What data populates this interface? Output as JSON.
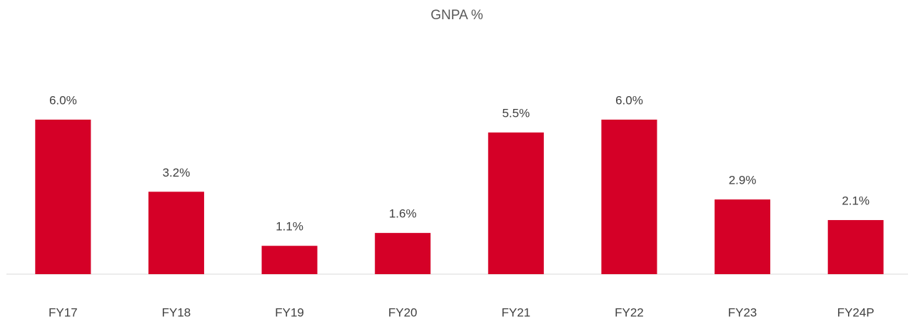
{
  "chart_data": {
    "type": "bar",
    "title": "GNPA %",
    "categories": [
      "FY17",
      "FY18",
      "FY19",
      "FY20",
      "FY21",
      "FY22",
      "FY23",
      "FY24P"
    ],
    "values": [
      6.0,
      3.2,
      1.1,
      1.6,
      5.5,
      6.0,
      2.9,
      2.1
    ],
    "value_labels": [
      "6.0%",
      "3.2%",
      "1.1%",
      "1.6%",
      "5.5%",
      "6.0%",
      "2.9%",
      "2.1%"
    ],
    "color": "#d50027"
  }
}
